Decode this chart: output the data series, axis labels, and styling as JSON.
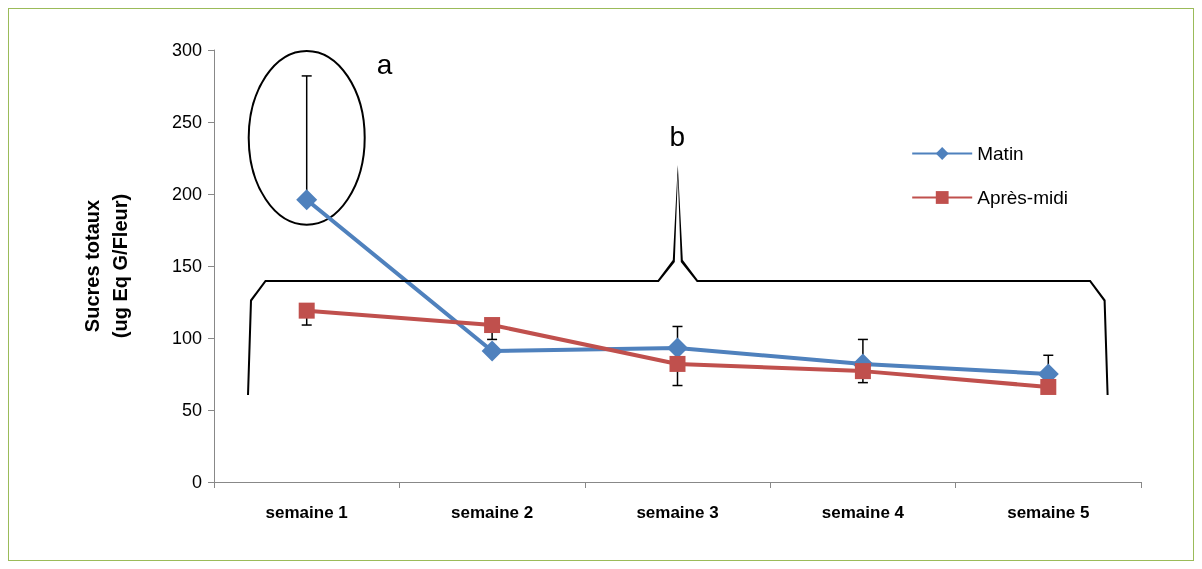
{
  "chart_data": {
    "type": "line",
    "ylabel": "Sucres totaux\n(ug Eq G/Fleur)",
    "categories": [
      "semaine 1",
      "semaine 2",
      "semaine 3",
      "semaine 4",
      "semaine 5"
    ],
    "ylim": [
      0,
      300
    ],
    "yticks": [
      0,
      50,
      100,
      150,
      200,
      250,
      300
    ],
    "grid": false,
    "legend": "top right",
    "series": [
      {
        "name": "Matin",
        "color": "#4f81bd",
        "marker": "diamond",
        "values": [
          196,
          91,
          93,
          82,
          75
        ],
        "errors": [
          [
            196,
            282
          ],
          null,
          [
            93,
            108
          ],
          [
            82,
            99
          ],
          [
            75,
            88
          ]
        ]
      },
      {
        "name": "Après-midi",
        "color": "#c0504d",
        "marker": "square",
        "values": [
          119,
          109,
          82,
          77,
          66
        ],
        "errors": [
          [
            109,
            119
          ],
          [
            99,
            109
          ],
          [
            67,
            82
          ],
          [
            69,
            77
          ],
          null
        ]
      }
    ],
    "annotations": [
      "a",
      "b"
    ]
  }
}
